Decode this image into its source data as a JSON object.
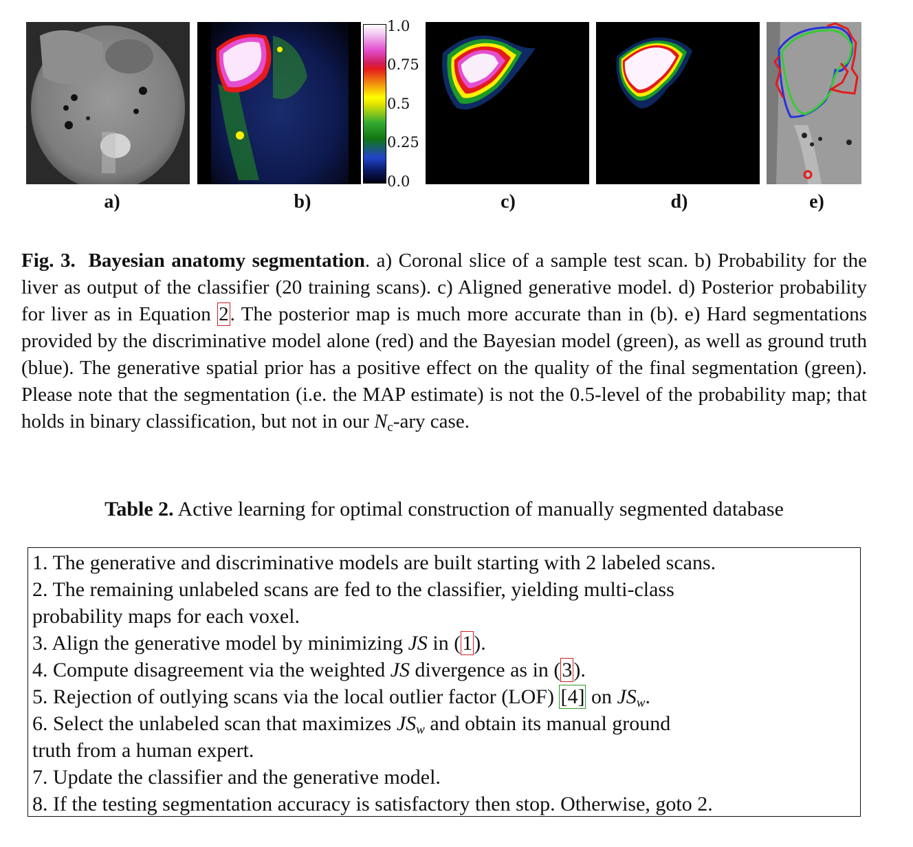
{
  "figure": {
    "panel_labels": [
      "a)",
      "b)",
      "c)",
      "d)",
      "e)"
    ],
    "colorbar_ticks": [
      "1.0",
      "0.75",
      "0.5",
      "0.25",
      "0.0"
    ],
    "colors": {
      "classifier_red": "#e41a1c",
      "bayesian_green": "#33cc33",
      "ground_truth_blue": "#2233dd"
    }
  },
  "caption": {
    "label": "Fig. 3.",
    "title": "Bayesian anatomy segmentation",
    "text_1": ". a) Coronal slice of a sample test scan. b) Probability for the liver as output of the classifier (20 training scans). c) Aligned generative model. d) Posterior probability for liver as in Equation ",
    "ref_eq": "2",
    "text_2": ". The posterior map is much more accurate than in (b). e) Hard segmentations provided by the discriminative model alone (red) and the Bayesian model (green), as well as ground truth (blue). The generative spatial prior has a positive effect on the quality of the final segmentation (green). Please note that the segmentation (i.e. the MAP estimate) is not the 0.5-level of the probability map; that holds in binary classification, but not in our ",
    "math_N": "N",
    "math_sub": "c",
    "text_3": "-ary case."
  },
  "table": {
    "label": "Table 2.",
    "title": "Active learning for optimal construction of manually segmented database",
    "step1": "1. The generative and discriminative models are built starting with 2 labeled scans.",
    "step2a": "2. The remaining unlabeled scans are fed to the classifier, yielding multi-class",
    "step2b": "probability maps for each voxel.",
    "step3_pre": "3. Align the generative model by minimizing ",
    "step3_math": "JS",
    "step3_mid": " in (",
    "step3_ref": "1",
    "step3_post": ").",
    "step4_pre": "4. Compute disagreement via the weighted ",
    "step4_math": "JS",
    "step4_mid": " divergence as in (",
    "step4_ref": "3",
    "step4_post": ").",
    "step5_pre": "5. Rejection of outlying scans via the local outlier factor (LOF) ",
    "step5_ref": "[4]",
    "step5_mid": " on ",
    "step5_math": "JS",
    "step5_sub": "w",
    "step5_post": ".",
    "step6_pre": "6. Select the unlabeled scan that maximizes ",
    "step6_math": "JS",
    "step6_sub": "w",
    "step6_post": " and obtain its manual ground",
    "step6b": "truth from a human expert.",
    "step7": "7. Update the classifier and the generative model.",
    "step8": "8. If the testing segmentation accuracy is satisfactory then stop. Otherwise, goto 2."
  }
}
